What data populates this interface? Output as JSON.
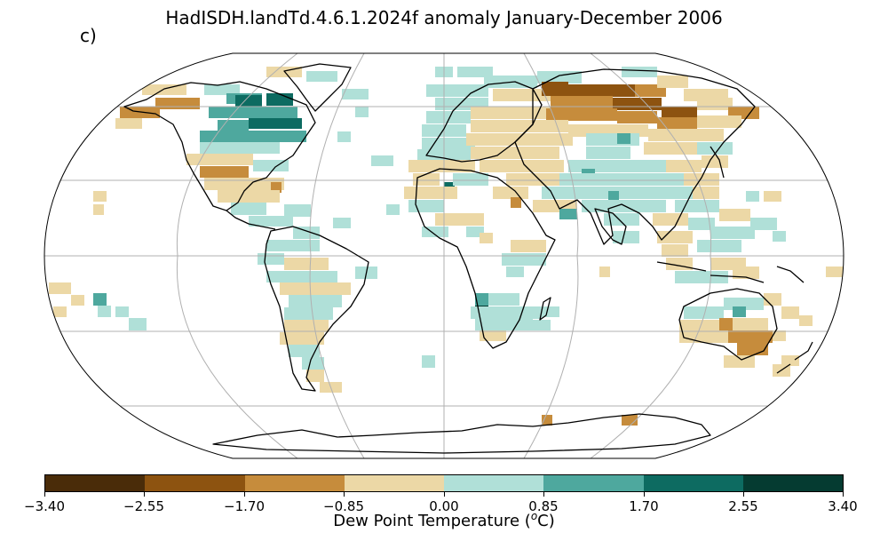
{
  "title": "HadISDH.landTd.4.6.1.2024f anomaly January-December 2006",
  "panel_label": "c)",
  "colorbar": {
    "label_prefix": "Dew Point Temperature (",
    "label_unit": "o",
    "label_suffix": "C)",
    "ticks": [
      "−3.40",
      "−2.55",
      "−1.70",
      "−0.85",
      "0.00",
      "0.85",
      "1.70",
      "2.55",
      "3.40"
    ],
    "colors": [
      "#4a2c09",
      "#8d5310",
      "#c68c3c",
      "#ecd8a6",
      "#b0e0d8",
      "#4ea89e",
      "#0d6b61",
      "#053b31"
    ]
  },
  "map": {
    "projection": "Robinson",
    "graticule": true
  }
}
